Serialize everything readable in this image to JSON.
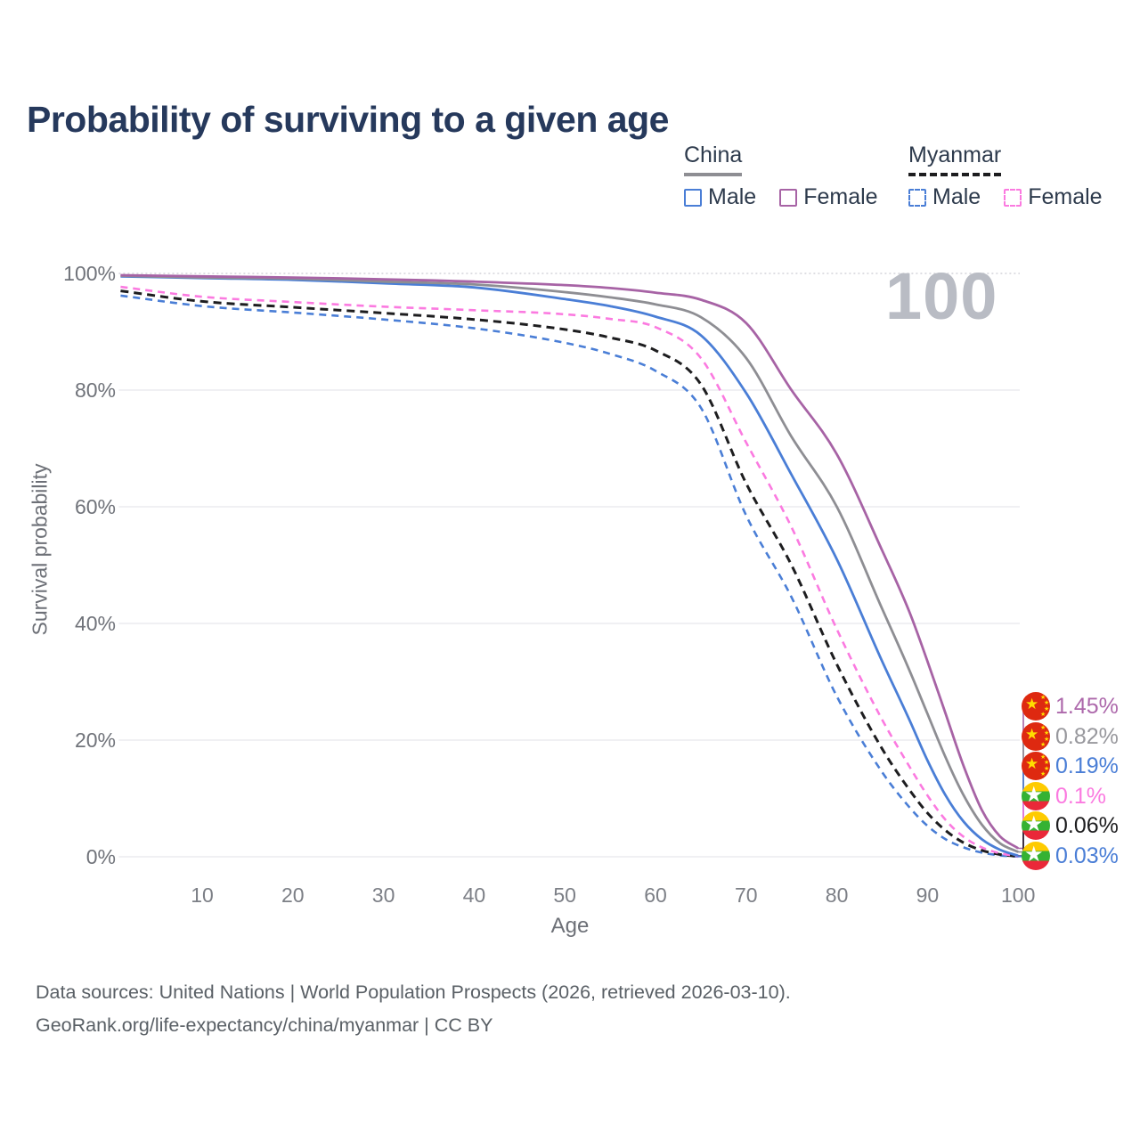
{
  "title": "Probability of surviving to a given age",
  "watermark_age": "100",
  "legend": {
    "groups": [
      {
        "id": "china",
        "label": "China",
        "line": {
          "color": "#8e8e93",
          "dash": "solid"
        },
        "items": [
          {
            "label": "Male",
            "color": "#4a7ed6",
            "dash": "solid"
          },
          {
            "label": "Female",
            "color": "#a763a5",
            "dash": "solid"
          }
        ]
      },
      {
        "id": "myanmar",
        "label": "Myanmar",
        "line": {
          "color": "#1d1d1f",
          "dash": "dashed"
        },
        "items": [
          {
            "label": "Male",
            "color": "#4a7ed6",
            "dash": "dashed"
          },
          {
            "label": "Female",
            "color": "#fb7ae0",
            "dash": "dashed"
          }
        ]
      }
    ]
  },
  "axes": {
    "x": {
      "title": "Age",
      "ticks": [
        "10",
        "20",
        "30",
        "40",
        "50",
        "60",
        "70",
        "80",
        "90",
        "100"
      ],
      "tick_values": [
        10,
        20,
        30,
        40,
        50,
        60,
        70,
        80,
        90,
        100
      ],
      "range": [
        1,
        100
      ]
    },
    "y": {
      "title": "Survival probability",
      "ticks": [
        "0%",
        "20%",
        "40%",
        "60%",
        "80%",
        "100%"
      ],
      "tick_values": [
        0,
        20,
        40,
        60,
        80,
        100
      ],
      "range": [
        0,
        100
      ]
    }
  },
  "end_labels": [
    {
      "flag": "china",
      "flag_name": "china-flag-icon",
      "value": "1.45%",
      "color": "#ad68ab"
    },
    {
      "flag": "china",
      "flag_name": "china-flag-icon",
      "value": "0.82%",
      "color": "#98989d"
    },
    {
      "flag": "china",
      "flag_name": "china-flag-icon",
      "value": "0.19%",
      "color": "#4a7ed6"
    },
    {
      "flag": "myanmar",
      "flag_name": "myanmar-flag-icon",
      "value": "0.1%",
      "color": "#fb7ae0"
    },
    {
      "flag": "myanmar",
      "flag_name": "myanmar-flag-icon",
      "value": "0.06%",
      "color": "#1d1d1f"
    },
    {
      "flag": "myanmar",
      "flag_name": "myanmar-flag-icon",
      "value": "0.03%",
      "color": "#4a7ed6"
    }
  ],
  "footer": {
    "line1": "Data sources: United Nations | World Population Prospects (2026, retrieved 2026-03-10).",
    "line2": "GeoRank.org/life-expectancy/china/myanmar | CC BY"
  },
  "chart_data": {
    "type": "line",
    "title": "Probability of surviving to a given age",
    "xlabel": "Age",
    "ylabel": "Survival probability",
    "xlim": [
      1,
      100
    ],
    "ylim": [
      0,
      100
    ],
    "grid": true,
    "legend_position": "top-right",
    "x_units": "years",
    "y_units": "percent",
    "series": [
      {
        "id": "china-female",
        "name": "China Female",
        "country": "China",
        "sex": "Female",
        "color": "#a763a5",
        "dash": "solid",
        "end_value_pct": 1.45,
        "points": [
          [
            1,
            99.7
          ],
          [
            10,
            99.5
          ],
          [
            20,
            99.3
          ],
          [
            30,
            99.0
          ],
          [
            40,
            98.6
          ],
          [
            50,
            98.0
          ],
          [
            55,
            97.5
          ],
          [
            60,
            96.7
          ],
          [
            65,
            95.5
          ],
          [
            70,
            91.5
          ],
          [
            75,
            80.0
          ],
          [
            80,
            69.0
          ],
          [
            85,
            52.5
          ],
          [
            88,
            42.0
          ],
          [
            90,
            33.5
          ],
          [
            92,
            24.5
          ],
          [
            94,
            15.5
          ],
          [
            96,
            8.0
          ],
          [
            98,
            3.5
          ],
          [
            100,
            1.45
          ]
        ]
      },
      {
        "id": "china-total",
        "name": "China Both sexes",
        "country": "China",
        "sex": "Total",
        "color": "#8e8e93",
        "dash": "solid",
        "end_value_pct": 0.82,
        "points": [
          [
            1,
            99.6
          ],
          [
            10,
            99.3
          ],
          [
            20,
            99.1
          ],
          [
            30,
            98.6
          ],
          [
            40,
            98.1
          ],
          [
            50,
            96.8
          ],
          [
            55,
            95.9
          ],
          [
            60,
            94.7
          ],
          [
            65,
            92.5
          ],
          [
            70,
            85.5
          ],
          [
            75,
            72.0
          ],
          [
            80,
            60.0
          ],
          [
            85,
            42.5
          ],
          [
            88,
            32.0
          ],
          [
            90,
            24.5
          ],
          [
            92,
            17.0
          ],
          [
            94,
            10.5
          ],
          [
            96,
            5.5
          ],
          [
            98,
            2.3
          ],
          [
            100,
            0.82
          ]
        ]
      },
      {
        "id": "china-male",
        "name": "China Male",
        "country": "China",
        "sex": "Male",
        "color": "#4a7ed6",
        "dash": "solid",
        "end_value_pct": 0.19,
        "points": [
          [
            1,
            99.5
          ],
          [
            10,
            99.2
          ],
          [
            20,
            98.9
          ],
          [
            30,
            98.3
          ],
          [
            40,
            97.6
          ],
          [
            50,
            95.6
          ],
          [
            55,
            94.4
          ],
          [
            60,
            92.6
          ],
          [
            65,
            89.4
          ],
          [
            70,
            79.5
          ],
          [
            75,
            65.5
          ],
          [
            80,
            51.0
          ],
          [
            85,
            33.5
          ],
          [
            88,
            23.5
          ],
          [
            90,
            16.5
          ],
          [
            92,
            10.5
          ],
          [
            94,
            6.0
          ],
          [
            96,
            3.0
          ],
          [
            98,
            1.2
          ],
          [
            100,
            0.19
          ]
        ]
      },
      {
        "id": "myanmar-female",
        "name": "Myanmar Female",
        "country": "Myanmar",
        "sex": "Female",
        "color": "#fb7ae0",
        "dash": "dashed",
        "end_value_pct": 0.1,
        "points": [
          [
            1,
            97.7
          ],
          [
            10,
            96.0
          ],
          [
            20,
            95.1
          ],
          [
            30,
            94.3
          ],
          [
            40,
            93.7
          ],
          [
            50,
            93.0
          ],
          [
            55,
            92.2
          ],
          [
            60,
            90.8
          ],
          [
            65,
            85.5
          ],
          [
            70,
            71.0
          ],
          [
            75,
            56.5
          ],
          [
            80,
            39.0
          ],
          [
            85,
            23.5
          ],
          [
            88,
            15.5
          ],
          [
            90,
            10.5
          ],
          [
            92,
            6.3
          ],
          [
            94,
            3.4
          ],
          [
            96,
            1.6
          ],
          [
            98,
            0.6
          ],
          [
            100,
            0.1
          ]
        ]
      },
      {
        "id": "myanmar-total",
        "name": "Myanmar Both sexes",
        "country": "Myanmar",
        "sex": "Total",
        "color": "#1d1d1f",
        "dash": "dashed",
        "end_value_pct": 0.06,
        "points": [
          [
            1,
            97.0
          ],
          [
            10,
            95.2
          ],
          [
            20,
            94.2
          ],
          [
            30,
            93.2
          ],
          [
            40,
            92.1
          ],
          [
            50,
            90.4
          ],
          [
            55,
            89.0
          ],
          [
            60,
            86.8
          ],
          [
            65,
            81.0
          ],
          [
            70,
            64.0
          ],
          [
            75,
            50.0
          ],
          [
            80,
            33.0
          ],
          [
            85,
            18.5
          ],
          [
            88,
            11.5
          ],
          [
            90,
            7.5
          ],
          [
            92,
            4.5
          ],
          [
            94,
            2.4
          ],
          [
            96,
            1.1
          ],
          [
            98,
            0.4
          ],
          [
            100,
            0.06
          ]
        ]
      },
      {
        "id": "myanmar-male",
        "name": "Myanmar Male",
        "country": "Myanmar",
        "sex": "Male",
        "color": "#4a7ed6",
        "dash": "dashed",
        "end_value_pct": 0.03,
        "points": [
          [
            1,
            96.2
          ],
          [
            10,
            94.4
          ],
          [
            20,
            93.3
          ],
          [
            30,
            92.1
          ],
          [
            40,
            90.6
          ],
          [
            50,
            88.1
          ],
          [
            55,
            86.2
          ],
          [
            60,
            83.3
          ],
          [
            65,
            77.0
          ],
          [
            70,
            58.5
          ],
          [
            75,
            44.5
          ],
          [
            80,
            27.5
          ],
          [
            85,
            14.5
          ],
          [
            88,
            8.5
          ],
          [
            90,
            5.3
          ],
          [
            92,
            3.0
          ],
          [
            94,
            1.6
          ],
          [
            96,
            0.7
          ],
          [
            98,
            0.25
          ],
          [
            100,
            0.03
          ]
        ]
      }
    ]
  }
}
